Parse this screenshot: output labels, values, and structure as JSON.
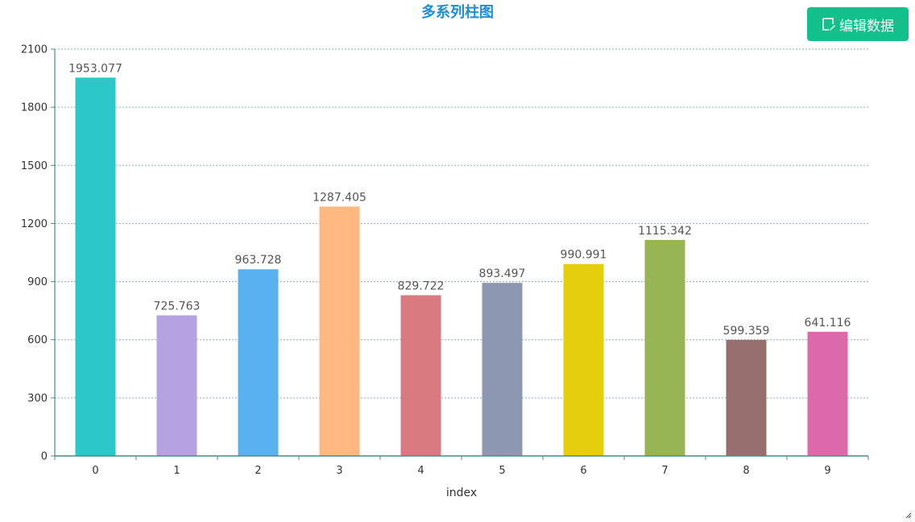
{
  "chart_data": {
    "type": "bar",
    "title": "多系列柱图",
    "xlabel": "index",
    "ylabel": "",
    "categories": [
      "0",
      "1",
      "2",
      "3",
      "4",
      "5",
      "6",
      "7",
      "8",
      "9"
    ],
    "values": [
      1953.077,
      725.763,
      963.728,
      1287.405,
      829.722,
      893.497,
      990.991,
      1115.342,
      599.359,
      641.116
    ],
    "value_labels": [
      "1953.077",
      "725.763",
      "963.728",
      "1287.405",
      "829.722",
      "893.497",
      "990.991",
      "1115.342",
      "599.359",
      "641.116"
    ],
    "colors": [
      "#2cc7c9",
      "#b5a2e0",
      "#5ab1ef",
      "#ffb980",
      "#d87a80",
      "#8d98b3",
      "#e5cf0d",
      "#97b552",
      "#95706d",
      "#dc69aa"
    ],
    "ylim": [
      0,
      2100
    ],
    "yticks": [
      0,
      300,
      600,
      900,
      1200,
      1500,
      1800,
      2100
    ],
    "grid": true,
    "legend": "none"
  },
  "toolbar": {
    "edit_label": "编辑数据",
    "edit_icon": "edit-icon"
  },
  "axis_color": "#4a8c8c",
  "grid_color": "#8fb0b0"
}
